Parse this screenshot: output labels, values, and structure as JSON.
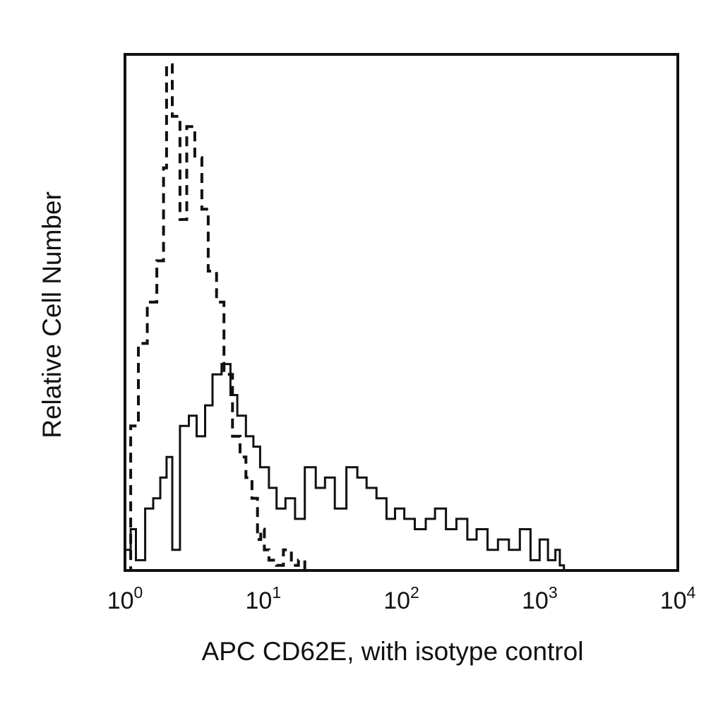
{
  "chart_data": {
    "type": "line",
    "title": "",
    "xlabel": "APC CD62E, with isotype control",
    "ylabel": "Relative Cell Number",
    "x_scale": "log",
    "xlim": [
      1,
      10000
    ],
    "ylim": [
      0,
      100
    ],
    "grid": false,
    "legend": "none",
    "x_ticks": [
      {
        "base": "10",
        "exp": "0"
      },
      {
        "base": "10",
        "exp": "1"
      },
      {
        "base": "10",
        "exp": "2"
      },
      {
        "base": "10",
        "exp": "3"
      },
      {
        "base": "10",
        "exp": "4"
      }
    ],
    "series": [
      {
        "style": "dashed",
        "color": "#111111",
        "x": [
          1.0,
          1.1,
          1.25,
          1.45,
          1.7,
          1.9,
          2.0,
          2.2,
          2.5,
          2.8,
          3.2,
          3.6,
          4.0,
          4.6,
          5.2,
          6.0,
          6.8,
          7.5,
          8.3,
          9.1,
          9.6,
          10.2,
          11.0,
          12.5,
          14.0,
          16.0,
          18.0,
          20.0
        ],
        "y": [
          0,
          28,
          44,
          52,
          60,
          78,
          98,
          88,
          68,
          86,
          80,
          70,
          58,
          52,
          38,
          26,
          22,
          18,
          14,
          6,
          8,
          4,
          2,
          1,
          4,
          1,
          2,
          0
        ]
      },
      {
        "style": "solid",
        "color": "#111111",
        "x": [
          1.0,
          1.1,
          1.2,
          1.4,
          1.6,
          1.8,
          2.0,
          2.2,
          2.5,
          2.9,
          3.3,
          3.8,
          4.3,
          5.0,
          5.8,
          6.5,
          7.5,
          8.5,
          9.5,
          11.0,
          12.5,
          14.5,
          17,
          20,
          24,
          28,
          33,
          40,
          48,
          56,
          66,
          78,
          90,
          105,
          125,
          150,
          175,
          210,
          250,
          300,
          350,
          420,
          500,
          600,
          720,
          860,
          1000,
          1150,
          1300,
          1400,
          1500,
          2000,
          4000,
          10000
        ],
        "y": [
          4,
          8,
          2,
          12,
          14,
          18,
          22,
          4,
          28,
          30,
          26,
          32,
          38,
          40,
          34,
          30,
          26,
          24,
          20,
          16,
          12,
          14,
          10,
          20,
          16,
          18,
          12,
          20,
          18,
          16,
          14,
          10,
          12,
          10,
          8,
          10,
          12,
          8,
          10,
          6,
          8,
          4,
          6,
          4,
          8,
          2,
          6,
          2,
          4,
          1,
          0,
          0,
          0,
          0
        ]
      }
    ]
  }
}
